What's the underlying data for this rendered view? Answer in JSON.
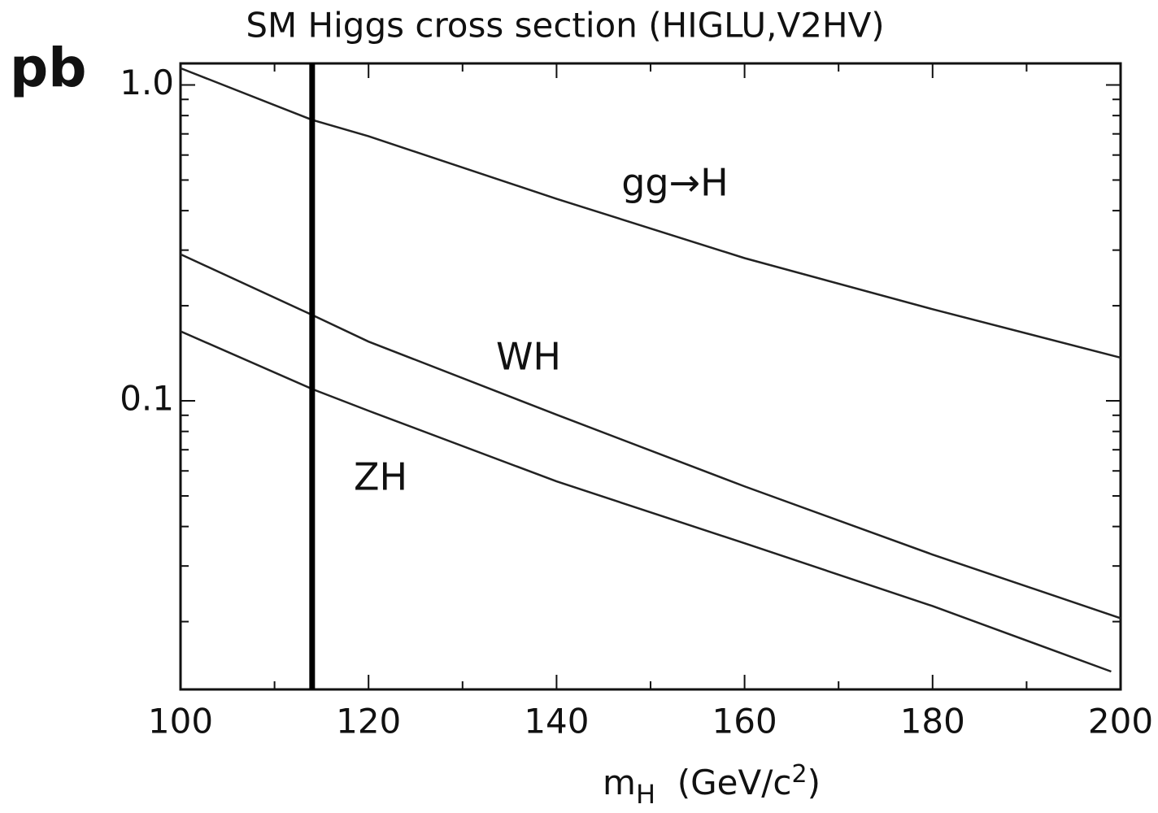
{
  "chart_data": {
    "type": "line",
    "title": "SM Higgs cross section (HIGLU,V2HV)",
    "ylabel": "pb",
    "xlabel": [
      "m",
      "H",
      "  (GeV/c",
      "2",
      ")"
    ],
    "log_y": true,
    "xlim": [
      100,
      200
    ],
    "ylim": [
      0.0122,
      1.17
    ],
    "xticks": [
      100,
      120,
      140,
      160,
      180,
      200
    ],
    "xminor_ticks": [
      110,
      130,
      150,
      170,
      190
    ],
    "yticks": [
      {
        "value": 1,
        "label": "1.0"
      },
      0.1
    ],
    "yminor_ticks": [
      0.02,
      0.03,
      0.04,
      0.05,
      0.06,
      0.07,
      0.08,
      0.09,
      0.2,
      0.3,
      0.4,
      0.5,
      0.6,
      0.7,
      0.8,
      0.9
    ],
    "vline_x": 114,
    "series": [
      {
        "name": "gg→H",
        "color": "#222222",
        "x": [
          100,
          114,
          120,
          140,
          160,
          180,
          200
        ],
        "values": [
          1.13,
          0.775,
          0.688,
          0.436,
          0.283,
          0.195,
          0.137
        ]
      },
      {
        "name": "WH",
        "color": "#222222",
        "x": [
          100,
          114,
          120,
          140,
          160,
          180,
          200
        ],
        "values": [
          0.291,
          0.187,
          0.154,
          0.0904,
          0.0536,
          0.0326,
          0.0205
        ]
      },
      {
        "name": "ZH",
        "color": "#222222",
        "x": [
          100,
          114,
          120,
          140,
          160,
          180,
          199
        ],
        "values": [
          0.166,
          0.109,
          0.093,
          0.0556,
          0.0354,
          0.0224,
          0.0139
        ]
      }
    ]
  }
}
